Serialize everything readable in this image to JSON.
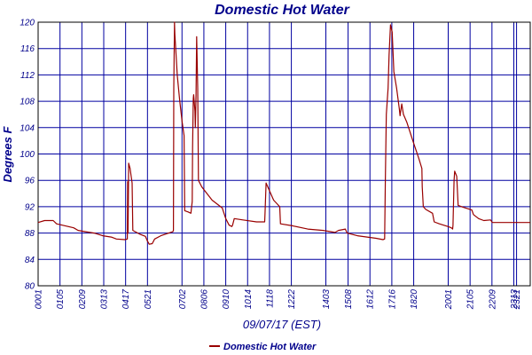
{
  "chart_data": {
    "type": "line",
    "title": "Domestic Hot Water",
    "xlabel": "09/07/17 (EST)",
    "ylabel": "Degrees F",
    "ylim": [
      80,
      120
    ],
    "yticks": [
      80,
      84,
      88,
      92,
      96,
      100,
      104,
      108,
      112,
      116,
      120
    ],
    "xlim": [
      1,
      1441
    ],
    "xticks": [
      {
        "label": "0001",
        "t": 1
      },
      {
        "label": "0105",
        "t": 65
      },
      {
        "label": "0209",
        "t": 129
      },
      {
        "label": "0313",
        "t": 193
      },
      {
        "label": "0417",
        "t": 257
      },
      {
        "label": "0521",
        "t": 321
      },
      {
        "label": "0702",
        "t": 422
      },
      {
        "label": "0806",
        "t": 486
      },
      {
        "label": "0910",
        "t": 550
      },
      {
        "label": "1014",
        "t": 614
      },
      {
        "label": "1118",
        "t": 678
      },
      {
        "label": "1222",
        "t": 742
      },
      {
        "label": "1403",
        "t": 843
      },
      {
        "label": "1508",
        "t": 908
      },
      {
        "label": "1612",
        "t": 972
      },
      {
        "label": "1716",
        "t": 1036
      },
      {
        "label": "1820",
        "t": 1100
      },
      {
        "label": "2001",
        "t": 1201
      },
      {
        "label": "2105",
        "t": 1265
      },
      {
        "label": "2209",
        "t": 1329
      },
      {
        "label": "2313",
        "t": 1393
      },
      {
        "label": "2321",
        "t": 1401
      }
    ],
    "grid": true,
    "legend_position": "bottom-center",
    "series": [
      {
        "name": "Domestic Hot Water",
        "color": "#990000",
        "points": [
          [
            1,
            89.6
          ],
          [
            20,
            89.9
          ],
          [
            45,
            89.9
          ],
          [
            55,
            89.4
          ],
          [
            80,
            89.1
          ],
          [
            105,
            88.8
          ],
          [
            118,
            88.4
          ],
          [
            140,
            88.2
          ],
          [
            165,
            88.0
          ],
          [
            190,
            87.6
          ],
          [
            215,
            87.4
          ],
          [
            230,
            87.1
          ],
          [
            255,
            87.0
          ],
          [
            262,
            87.1
          ],
          [
            263,
            95.8
          ],
          [
            264,
            88.0
          ],
          [
            266,
            98.6
          ],
          [
            270,
            97.8
          ],
          [
            276,
            95.6
          ],
          [
            278,
            88.4
          ],
          [
            300,
            87.8
          ],
          [
            315,
            87.5
          ],
          [
            320,
            86.9
          ],
          [
            326,
            86.3
          ],
          [
            335,
            86.4
          ],
          [
            342,
            87.1
          ],
          [
            360,
            87.6
          ],
          [
            395,
            88.2
          ],
          [
            397,
            88.4
          ],
          [
            398,
            110.0
          ],
          [
            400,
            120.0
          ],
          [
            401,
            118.2
          ],
          [
            408,
            112.0
          ],
          [
            415,
            108.2
          ],
          [
            422,
            105.0
          ],
          [
            428,
            102.8
          ],
          [
            430,
            91.4
          ],
          [
            440,
            91.2
          ],
          [
            448,
            91.0
          ],
          [
            452,
            92.8
          ],
          [
            453,
            101.0
          ],
          [
            455,
            108.4
          ],
          [
            456,
            109.0
          ],
          [
            460,
            106.5
          ],
          [
            461,
            104.0
          ],
          [
            463,
            109.0
          ],
          [
            465,
            117.8
          ],
          [
            468,
            110.0
          ],
          [
            470,
            96.0
          ],
          [
            480,
            95.0
          ],
          [
            510,
            93.0
          ],
          [
            540,
            91.8
          ],
          [
            550,
            90.2
          ],
          [
            560,
            89.2
          ],
          [
            568,
            89.0
          ],
          [
            570,
            89.2
          ],
          [
            575,
            90.2
          ],
          [
            600,
            90.0
          ],
          [
            640,
            89.7
          ],
          [
            664,
            89.7
          ],
          [
            665,
            91.0
          ],
          [
            668,
            95.6
          ],
          [
            690,
            93.0
          ],
          [
            708,
            92.0
          ],
          [
            710,
            89.4
          ],
          [
            745,
            89.1
          ],
          [
            790,
            88.6
          ],
          [
            835,
            88.4
          ],
          [
            870,
            88.1
          ],
          [
            880,
            88.4
          ],
          [
            900,
            88.6
          ],
          [
            905,
            88.0
          ],
          [
            935,
            87.6
          ],
          [
            990,
            87.2
          ],
          [
            1010,
            87.0
          ],
          [
            1015,
            87.1
          ],
          [
            1017,
            96.0
          ],
          [
            1020,
            106.0
          ],
          [
            1025,
            110.0
          ],
          [
            1028,
            115.0
          ],
          [
            1032,
            119.6
          ],
          [
            1037,
            118.5
          ],
          [
            1042,
            112.5
          ],
          [
            1050,
            110.0
          ],
          [
            1058,
            106.8
          ],
          [
            1060,
            105.8
          ],
          [
            1065,
            107.6
          ],
          [
            1070,
            106.0
          ],
          [
            1080,
            104.8
          ],
          [
            1100,
            101.6
          ],
          [
            1115,
            99.3
          ],
          [
            1124,
            97.8
          ],
          [
            1125,
            95.0
          ],
          [
            1128,
            92.0
          ],
          [
            1135,
            91.6
          ],
          [
            1155,
            91.0
          ],
          [
            1160,
            89.7
          ],
          [
            1175,
            89.4
          ],
          [
            1200,
            89.0
          ],
          [
            1210,
            88.8
          ],
          [
            1214,
            88.6
          ],
          [
            1215,
            89.2
          ],
          [
            1218,
            96.0
          ],
          [
            1220,
            97.4
          ],
          [
            1226,
            96.6
          ],
          [
            1230,
            92.2
          ],
          [
            1245,
            91.9
          ],
          [
            1270,
            91.5
          ],
          [
            1275,
            90.8
          ],
          [
            1290,
            90.2
          ],
          [
            1305,
            89.9
          ],
          [
            1325,
            90.0
          ],
          [
            1330,
            89.6
          ],
          [
            1441,
            89.6
          ]
        ]
      }
    ]
  }
}
